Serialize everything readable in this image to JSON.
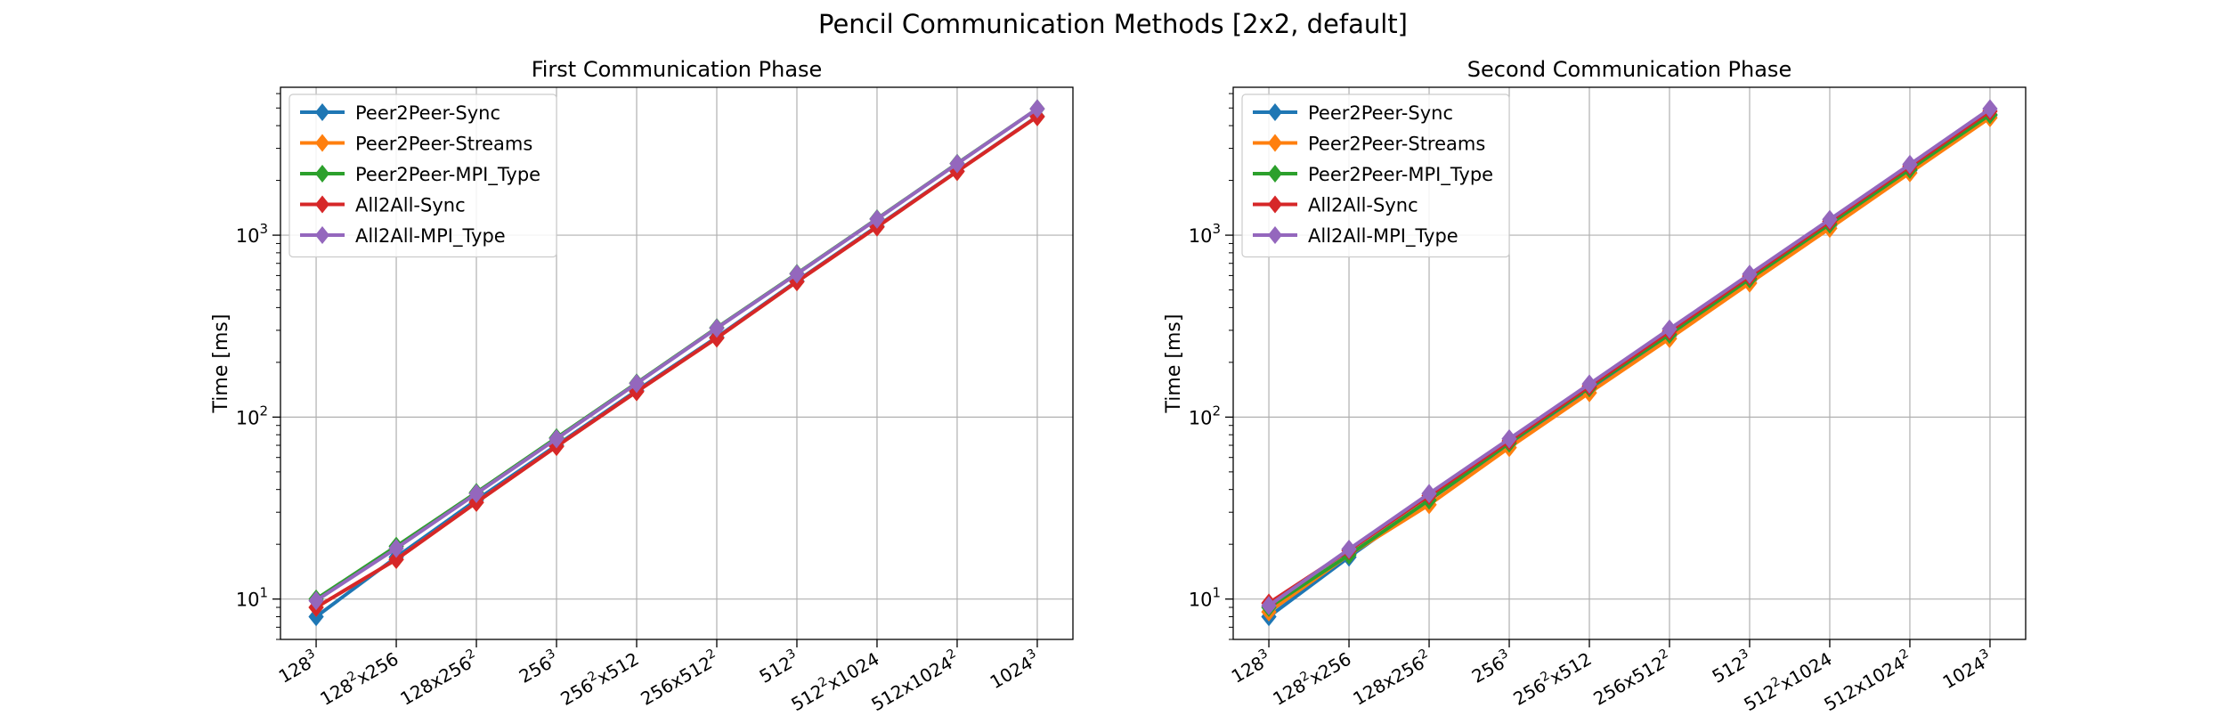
{
  "figure": {
    "title": "Pencil Communication Methods [2x2, default]"
  },
  "colors": {
    "Peer2Peer-Sync": "#1f77b4",
    "Peer2Peer-Streams": "#ff7f0e",
    "Peer2Peer-MPI_Type": "#2ca02c",
    "All2All-Sync": "#d62728",
    "All2All-MPI_Type": "#9467bd"
  },
  "chart_data": [
    {
      "type": "line",
      "title": "First Communication Phase",
      "xlabel": "",
      "ylabel": "Time [ms]",
      "yscale": "log",
      "ylim": [
        6,
        6500
      ],
      "grid": true,
      "legend": "top-left",
      "marker": "diamond",
      "categories": [
        {
          "base": "128",
          "sup": "3",
          "tail": "",
          "sup2": ""
        },
        {
          "base": "128",
          "sup": "2",
          "tail": "x256",
          "sup2": ""
        },
        {
          "base": "128x256",
          "sup": "2",
          "tail": "",
          "sup2": ""
        },
        {
          "base": "256",
          "sup": "3",
          "tail": "",
          "sup2": ""
        },
        {
          "base": "256",
          "sup": "2",
          "tail": "x512",
          "sup2": ""
        },
        {
          "base": "256x512",
          "sup": "2",
          "tail": "",
          "sup2": ""
        },
        {
          "base": "512",
          "sup": "3",
          "tail": "",
          "sup2": ""
        },
        {
          "base": "512",
          "sup": "2",
          "tail": "x1024",
          "sup2": ""
        },
        {
          "base": "512x1024",
          "sup": "2",
          "tail": "",
          "sup2": ""
        },
        {
          "base": "1024",
          "sup": "3",
          "tail": "",
          "sup2": ""
        }
      ],
      "yticks": [
        {
          "base": "10",
          "exp": "1",
          "value": 10
        },
        {
          "base": "10",
          "exp": "2",
          "value": 100
        },
        {
          "base": "10",
          "exp": "3",
          "value": 1000
        }
      ],
      "series": [
        {
          "name": "Peer2Peer-Sync",
          "values": [
            8,
            17,
            35,
            70,
            140,
            275,
            560,
            1120,
            2250,
            4500
          ]
        },
        {
          "name": "Peer2Peer-Streams",
          "values": [
            9,
            16.5,
            34,
            69,
            138,
            272,
            555,
            1110,
            2240,
            4480
          ]
        },
        {
          "name": "Peer2Peer-MPI_Type",
          "values": [
            10,
            19.5,
            38.5,
            77,
            154,
            310,
            615,
            1230,
            2480,
            4950
          ]
        },
        {
          "name": "All2All-Sync",
          "values": [
            9,
            16.5,
            34,
            69,
            138,
            272,
            555,
            1110,
            2240,
            4480
          ]
        },
        {
          "name": "All2All-MPI_Type",
          "values": [
            9.8,
            19,
            38,
            76,
            153,
            308,
            612,
            1225,
            2470,
            4950
          ]
        }
      ]
    },
    {
      "type": "line",
      "title": "Second Communication Phase",
      "xlabel": "",
      "ylabel": "Time [ms]",
      "yscale": "log",
      "ylim": [
        6,
        6500
      ],
      "grid": true,
      "legend": "top-left",
      "marker": "diamond",
      "categories": [
        {
          "base": "128",
          "sup": "3",
          "tail": "",
          "sup2": ""
        },
        {
          "base": "128",
          "sup": "2",
          "tail": "x256",
          "sup2": ""
        },
        {
          "base": "128x256",
          "sup": "2",
          "tail": "",
          "sup2": ""
        },
        {
          "base": "256",
          "sup": "3",
          "tail": "",
          "sup2": ""
        },
        {
          "base": "256",
          "sup": "2",
          "tail": "x512",
          "sup2": ""
        },
        {
          "base": "256x512",
          "sup": "2",
          "tail": "",
          "sup2": ""
        },
        {
          "base": "512",
          "sup": "3",
          "tail": "",
          "sup2": ""
        },
        {
          "base": "512",
          "sup": "2",
          "tail": "x1024",
          "sup2": ""
        },
        {
          "base": "512x1024",
          "sup": "2",
          "tail": "",
          "sup2": ""
        },
        {
          "base": "1024",
          "sup": "3",
          "tail": "",
          "sup2": ""
        }
      ],
      "yticks": [
        {
          "base": "10",
          "exp": "1",
          "value": 10
        },
        {
          "base": "10",
          "exp": "2",
          "value": 100
        },
        {
          "base": "10",
          "exp": "3",
          "value": 1000
        }
      ],
      "series": [
        {
          "name": "Peer2Peer-Sync",
          "values": [
            8,
            17,
            35,
            71,
            142,
            280,
            565,
            1130,
            2270,
            4550
          ]
        },
        {
          "name": "Peer2Peer-Streams",
          "values": [
            8.5,
            17.5,
            33,
            68,
            136,
            270,
            545,
            1090,
            2200,
            4420
          ]
        },
        {
          "name": "Peer2Peer-MPI_Type",
          "values": [
            9,
            17.5,
            35,
            72,
            145,
            285,
            575,
            1150,
            2300,
            4600
          ]
        },
        {
          "name": "All2All-Sync",
          "values": [
            9.5,
            18.5,
            37,
            74,
            148,
            296,
            595,
            1190,
            2390,
            4800
          ]
        },
        {
          "name": "All2All-MPI_Type",
          "values": [
            9.2,
            18.8,
            38,
            76,
            152,
            305,
            610,
            1220,
            2450,
            4950
          ]
        }
      ]
    }
  ]
}
